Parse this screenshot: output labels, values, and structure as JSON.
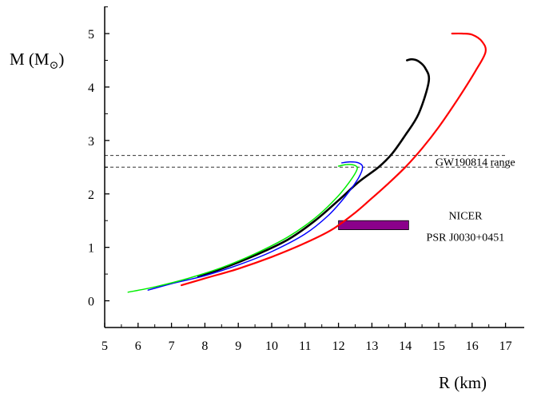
{
  "chart_data": {
    "type": "line",
    "xlabel": "R (km)",
    "ylabel_main": "M (M",
    "ylabel_sub": "⊙",
    "ylabel_close": ")",
    "xlim": [
      5,
      17.5
    ],
    "ylim": [
      -0.5,
      5.5
    ],
    "xticks": [
      5,
      6,
      7,
      8,
      9,
      10,
      11,
      12,
      13,
      14,
      15,
      16,
      17
    ],
    "yticks": [
      0,
      1,
      2,
      3,
      4,
      5
    ],
    "grid": false,
    "series": [
      {
        "color": "#ff0000",
        "points": [
          [
            7.3,
            0.29
          ],
          [
            8.0,
            0.42
          ],
          [
            9.0,
            0.6
          ],
          [
            10.0,
            0.82
          ],
          [
            11.0,
            1.08
          ],
          [
            11.8,
            1.33
          ],
          [
            12.5,
            1.65
          ],
          [
            13.0,
            1.92
          ],
          [
            13.5,
            2.2
          ],
          [
            14.0,
            2.5
          ],
          [
            14.5,
            2.85
          ],
          [
            15.0,
            3.25
          ],
          [
            15.6,
            3.8
          ],
          [
            16.1,
            4.3
          ],
          [
            16.4,
            4.65
          ],
          [
            16.3,
            4.85
          ],
          [
            16.0,
            4.98
          ],
          [
            15.7,
            5.0
          ],
          [
            15.4,
            5.0
          ]
        ]
      },
      {
        "color": "#000000",
        "points": [
          [
            7.8,
            0.46
          ],
          [
            8.5,
            0.6
          ],
          [
            9.5,
            0.85
          ],
          [
            10.5,
            1.15
          ],
          [
            11.3,
            1.5
          ],
          [
            12.0,
            1.88
          ],
          [
            12.6,
            2.22
          ],
          [
            13.2,
            2.5
          ],
          [
            13.6,
            2.75
          ],
          [
            14.0,
            3.1
          ],
          [
            14.4,
            3.5
          ],
          [
            14.7,
            4.1
          ],
          [
            14.6,
            4.35
          ],
          [
            14.4,
            4.48
          ],
          [
            14.2,
            4.52
          ],
          [
            14.05,
            4.5
          ]
        ]
      },
      {
        "color": "#0000ff",
        "points": [
          [
            6.3,
            0.2
          ],
          [
            7.0,
            0.32
          ],
          [
            8.0,
            0.47
          ],
          [
            9.0,
            0.67
          ],
          [
            10.0,
            0.92
          ],
          [
            11.0,
            1.25
          ],
          [
            11.7,
            1.6
          ],
          [
            12.2,
            1.95
          ],
          [
            12.6,
            2.3
          ],
          [
            12.72,
            2.5
          ],
          [
            12.6,
            2.58
          ],
          [
            12.35,
            2.6
          ],
          [
            12.1,
            2.58
          ]
        ]
      },
      {
        "color": "#00ee00",
        "points": [
          [
            5.7,
            0.16
          ],
          [
            6.5,
            0.26
          ],
          [
            7.5,
            0.42
          ],
          [
            8.5,
            0.62
          ],
          [
            9.5,
            0.88
          ],
          [
            10.5,
            1.2
          ],
          [
            11.3,
            1.55
          ],
          [
            11.9,
            1.9
          ],
          [
            12.3,
            2.2
          ],
          [
            12.55,
            2.45
          ],
          [
            12.5,
            2.53
          ],
          [
            12.25,
            2.55
          ],
          [
            12.0,
            2.52
          ]
        ]
      }
    ],
    "hlines": [
      {
        "y": 2.5
      },
      {
        "y": 2.72
      }
    ],
    "annotations": [
      {
        "text": "GW190814 range",
        "x": 14.9,
        "y": 2.6
      },
      {
        "text": "NICER",
        "x": 15.8,
        "y": 1.6
      },
      {
        "text": "PSR J0030+0451",
        "x": 15.8,
        "y": 1.2
      }
    ],
    "boxes": [
      {
        "x0": 12.0,
        "x1": 14.1,
        "y0": 1.33,
        "y1": 1.5,
        "color": "#8b008b"
      }
    ]
  }
}
